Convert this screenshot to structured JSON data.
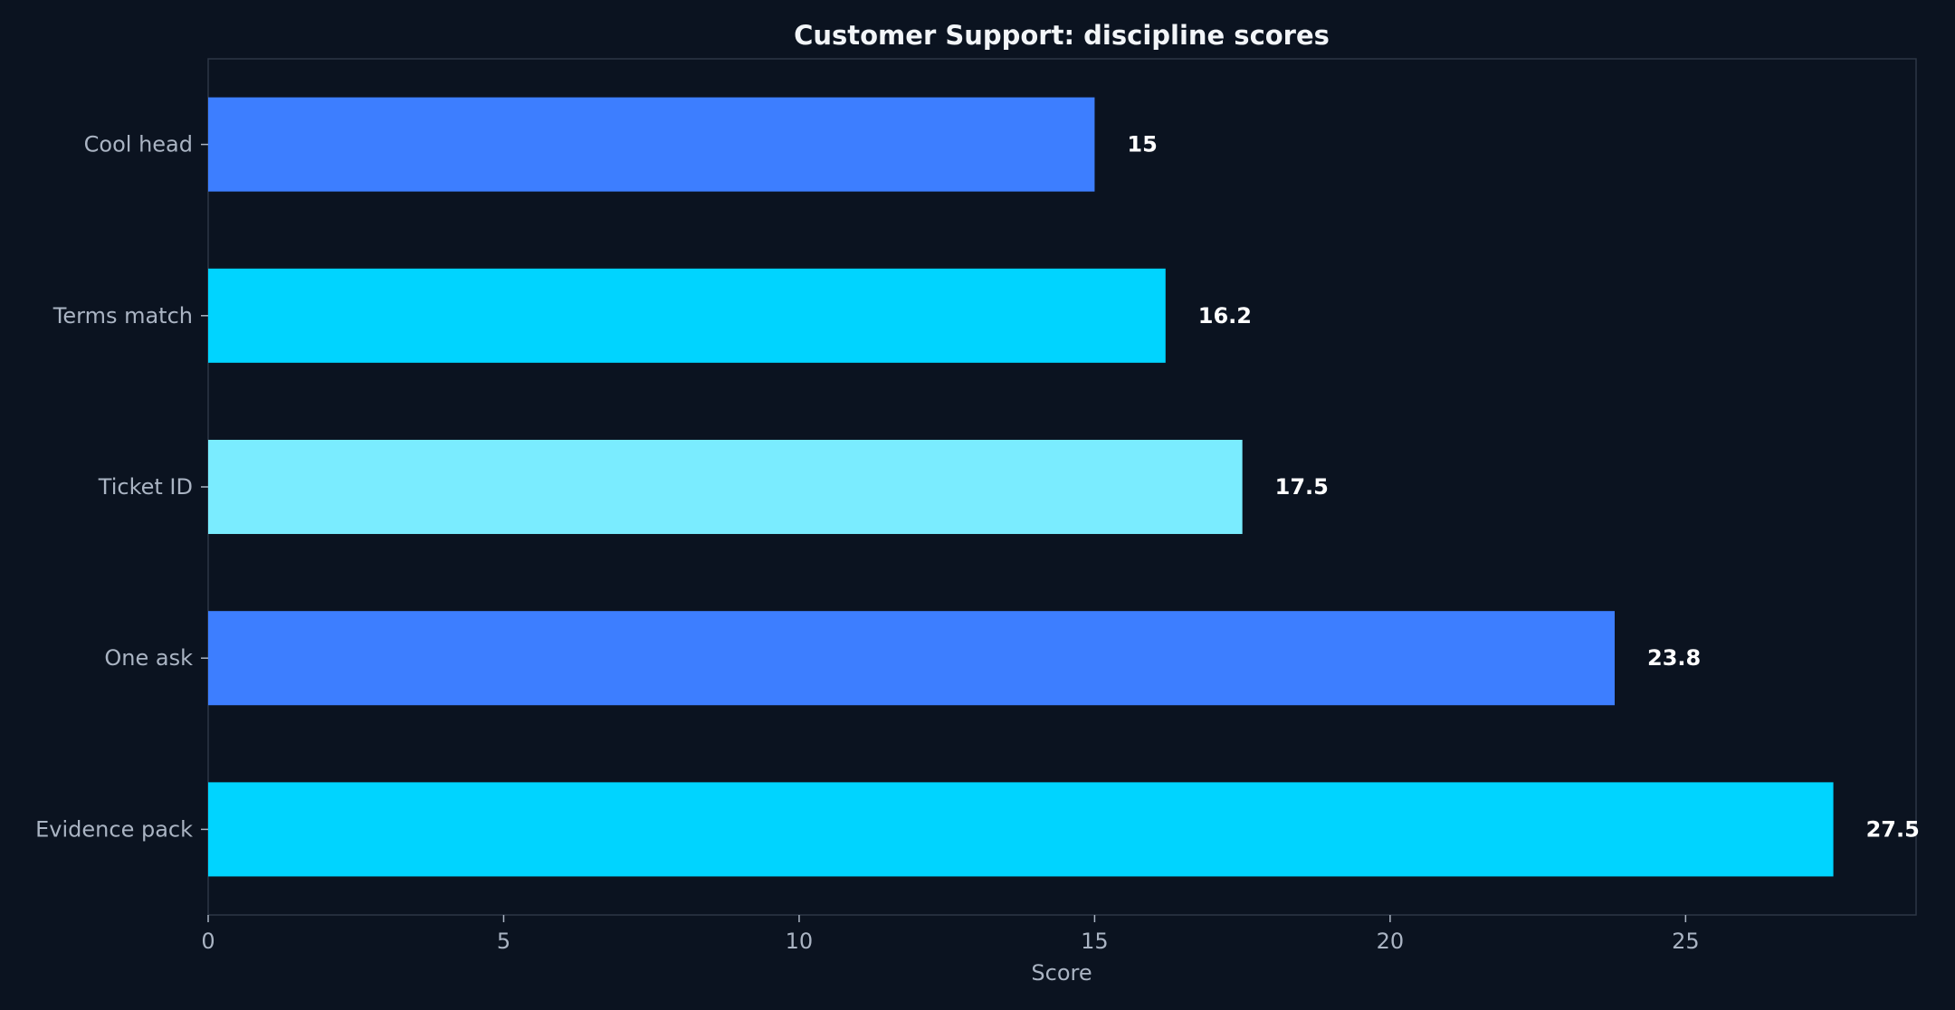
{
  "chart_data": {
    "type": "bar",
    "orientation": "horizontal",
    "title": "Customer Support: discipline scores",
    "xlabel": "Score",
    "ylabel": "",
    "categories": [
      "Cool head",
      "Terms match",
      "Ticket ID",
      "One ask",
      "Evidence pack"
    ],
    "values": [
      15,
      16.2,
      17.5,
      23.8,
      27.5
    ],
    "data_labels": [
      "15",
      "16.2",
      "17.5",
      "23.8",
      "27.5"
    ],
    "bar_colors": [
      "#3d7eff",
      "#00d4ff",
      "#7aecff",
      "#3d7eff",
      "#00d4ff"
    ],
    "xlim": [
      0,
      28.9
    ],
    "xticks": [
      0,
      5,
      10,
      15,
      20,
      25
    ],
    "xtick_labels": [
      "0",
      "5",
      "10",
      "15",
      "20",
      "25"
    ],
    "grid": false,
    "legend": "none"
  },
  "colors": {
    "background": "#0b1320",
    "frame": "#2c3645",
    "text": "#aab4c3",
    "title": "#f2f5f8"
  }
}
